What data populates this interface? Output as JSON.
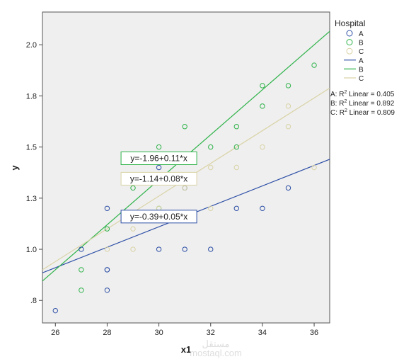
{
  "chart_data": {
    "type": "scatter",
    "xlabel": "x1",
    "ylabel": "y",
    "xlim": [
      25.5,
      36.6
    ],
    "ylim": [
      0.64,
      2.16
    ],
    "xticks": [
      26,
      28,
      30,
      32,
      34,
      36
    ],
    "xtick_labels": [
      "26",
      "28",
      "30",
      "32",
      "34",
      "36"
    ],
    "yticks": [
      0.75,
      1.0,
      1.25,
      1.5,
      1.75,
      2.0
    ],
    "ytick_labels": [
      ".8",
      "1.0",
      "1.3",
      "1.5",
      "1.8",
      "2.0"
    ],
    "grid": false,
    "legend": {
      "title": "Hospital",
      "placement": "right",
      "entries": [
        {
          "label": "A",
          "kind": "marker",
          "series": "A"
        },
        {
          "label": "B",
          "kind": "marker",
          "series": "B"
        },
        {
          "label": "C",
          "kind": "marker",
          "series": "C"
        },
        {
          "label": "A",
          "kind": "line",
          "series": "A"
        },
        {
          "label": "B",
          "kind": "line",
          "series": "B"
        },
        {
          "label": "C",
          "kind": "line",
          "series": "C"
        }
      ],
      "r2_lines": [
        {
          "prefix": "A: R",
          "suffix": " Linear = 0.405"
        },
        {
          "prefix": "B: R",
          "suffix": " Linear = 0.892"
        },
        {
          "prefix": "C: R",
          "suffix": " Linear = 0.809"
        }
      ]
    },
    "series": [
      {
        "name": "A",
        "color": "#2d4fa6",
        "points": [
          [
            26,
            0.7
          ],
          [
            27,
            1.0
          ],
          [
            28,
            0.9
          ],
          [
            28,
            0.9
          ],
          [
            28,
            0.8
          ],
          [
            28,
            1.2
          ],
          [
            30,
            1.0
          ],
          [
            30,
            1.4
          ],
          [
            31,
            1.0
          ],
          [
            31,
            1.3
          ],
          [
            32,
            1.0
          ],
          [
            33,
            1.2
          ],
          [
            34,
            1.2
          ],
          [
            35,
            1.3
          ]
        ],
        "fit": {
          "intercept": -0.39,
          "slope": 0.05,
          "equation": "y=-0.39+0.05*x"
        }
      },
      {
        "name": "B",
        "color": "#2fb34a",
        "points": [
          [
            27,
            0.8
          ],
          [
            27,
            0.9
          ],
          [
            28,
            1.1
          ],
          [
            29,
            1.3
          ],
          [
            30,
            1.5
          ],
          [
            30,
            1.2
          ],
          [
            31,
            1.6
          ],
          [
            32,
            1.5
          ],
          [
            33,
            1.5
          ],
          [
            33,
            1.6
          ],
          [
            34,
            1.7
          ],
          [
            34,
            1.8
          ],
          [
            35,
            1.8
          ],
          [
            36,
            1.9
          ]
        ],
        "fit": {
          "intercept": -1.96,
          "slope": 0.11,
          "equation": "y=-1.96+0.11*x"
        }
      },
      {
        "name": "C",
        "color": "#d9d3a6",
        "points": [
          [
            28,
            1.0
          ],
          [
            29,
            1.0
          ],
          [
            29,
            1.1
          ],
          [
            30,
            1.2
          ],
          [
            31,
            1.3
          ],
          [
            32,
            1.2
          ],
          [
            32,
            1.4
          ],
          [
            33,
            1.4
          ],
          [
            34,
            1.5
          ],
          [
            35,
            1.6
          ],
          [
            35,
            1.7
          ],
          [
            36,
            1.4
          ]
        ],
        "fit": {
          "intercept": -1.14,
          "slope": 0.08,
          "equation": "y=-1.14+0.08*x"
        }
      }
    ],
    "annotations": [
      {
        "series": "B",
        "text": "y=-1.96+0.11*x",
        "x": 30.0,
        "y": 1.445
      },
      {
        "series": "C",
        "text": "y=-1.14+0.08*x",
        "x": 30.0,
        "y": 1.345
      },
      {
        "series": "A",
        "text": "y=-0.39+0.05*x",
        "x": 30.0,
        "y": 1.16
      }
    ]
  },
  "watermark": {
    "text": "مستقل",
    "subtext": "mostaql.com"
  }
}
